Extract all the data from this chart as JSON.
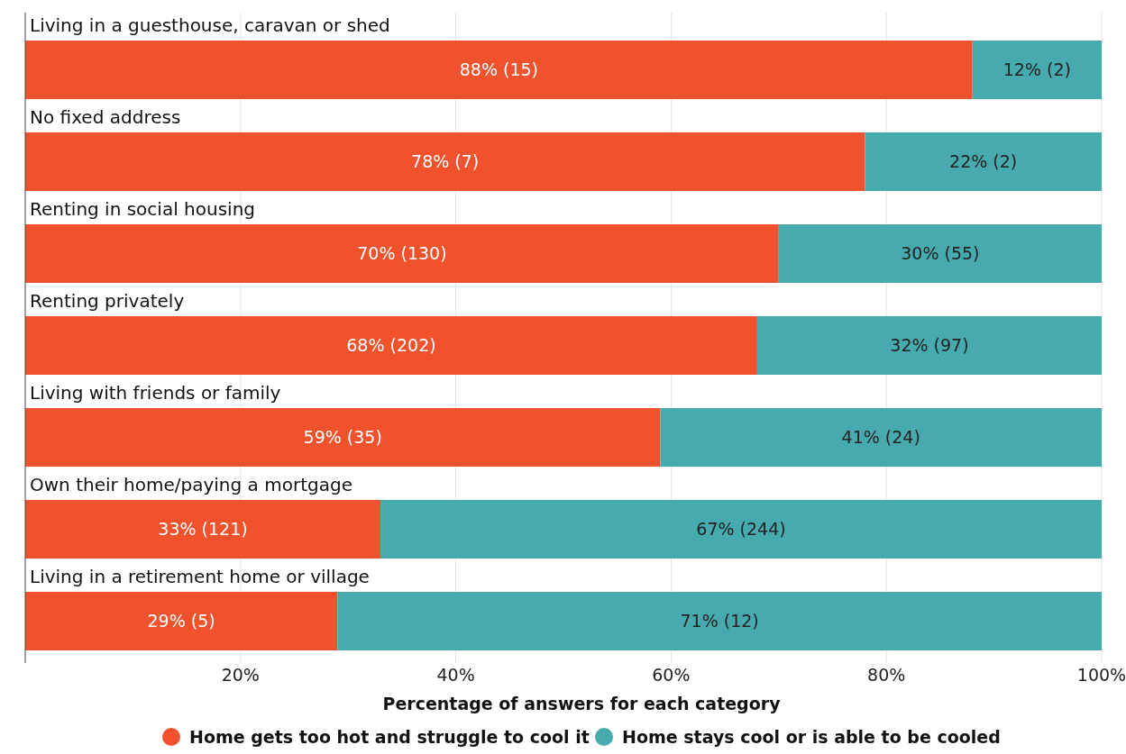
{
  "chart_data": {
    "type": "bar",
    "orientation": "horizontal",
    "stacked": true,
    "xlabel": "Percentage of answers for each category",
    "categories": [
      "Living in a guesthouse, caravan or shed",
      "No fixed address",
      "Renting in social housing",
      "Renting privately",
      "Living with friends or family",
      "Own their home/paying a mortgage",
      "Living in a retirement home or village"
    ],
    "series": [
      {
        "name": "Home gets too hot and struggle to cool it",
        "color": "#f0522d",
        "values": [
          88,
          78,
          70,
          68,
          59,
          33,
          29
        ],
        "value_labels": [
          "88% (15)",
          "78% (7)",
          "70% (130)",
          "68% (202)",
          "59% (35)",
          "33% (121)",
          "29% (5)"
        ]
      },
      {
        "name": "Home stays cool or is able to be cooled",
        "color": "#47aaae",
        "values": [
          12,
          22,
          30,
          32,
          41,
          67,
          71
        ],
        "value_labels": [
          "12% (2)",
          "22% (2)",
          "30% (55)",
          "32% (97)",
          "41% (24)",
          "67% (244)",
          "71% (12)"
        ]
      }
    ],
    "xlim": [
      0,
      100
    ],
    "xticks": [
      {
        "value": 20,
        "label": "20%"
      },
      {
        "value": 40,
        "label": "40%"
      },
      {
        "value": 60,
        "label": "60%"
      },
      {
        "value": 80,
        "label": "80%"
      },
      {
        "value": 100,
        "label": "100%"
      }
    ],
    "grid": "x",
    "legend": "bottom"
  }
}
